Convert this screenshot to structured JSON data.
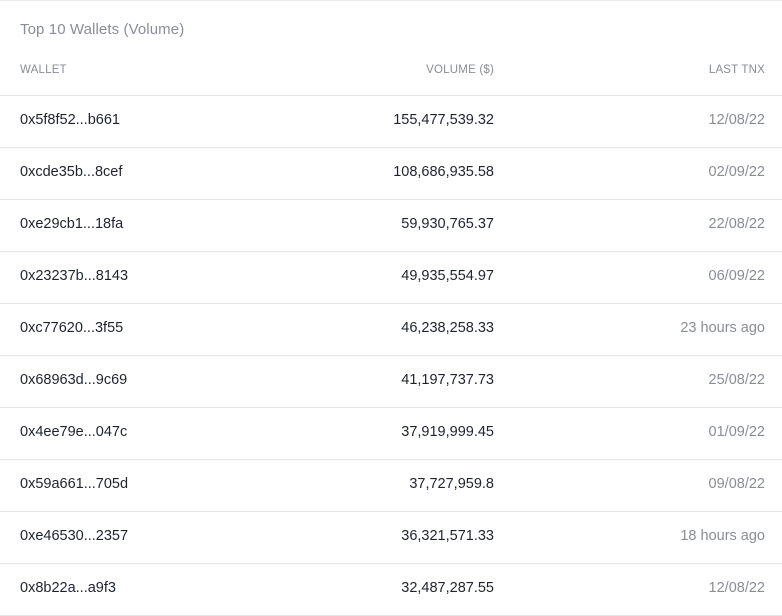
{
  "title": "Top 10 Wallets (Volume)",
  "columns": {
    "wallet": "WALLET",
    "volume": "VOLUME ($)",
    "last_tnx": "LAST TNX"
  },
  "rows": [
    {
      "wallet": "0x5f8f52...b661",
      "volume": "155,477,539.32",
      "last_tnx": "12/08/22"
    },
    {
      "wallet": "0xcde35b...8cef",
      "volume": "108,686,935.58",
      "last_tnx": "02/09/22"
    },
    {
      "wallet": "0xe29cb1...18fa",
      "volume": "59,930,765.37",
      "last_tnx": "22/08/22"
    },
    {
      "wallet": "0x23237b...8143",
      "volume": "49,935,554.97",
      "last_tnx": "06/09/22"
    },
    {
      "wallet": "0xc77620...3f55",
      "volume": "46,238,258.33",
      "last_tnx": "23 hours ago"
    },
    {
      "wallet": "0x68963d...9c69",
      "volume": "41,197,737.73",
      "last_tnx": "25/08/22"
    },
    {
      "wallet": "0x4ee79e...047c",
      "volume": "37,919,999.45",
      "last_tnx": "01/09/22"
    },
    {
      "wallet": "0x59a661...705d",
      "volume": "37,727,959.8",
      "last_tnx": "09/08/22"
    },
    {
      "wallet": "0xe46530...2357",
      "volume": "36,321,571.33",
      "last_tnx": "18 hours ago"
    },
    {
      "wallet": "0x8b22a...a9f3",
      "volume": "32,487,287.55",
      "last_tnx": "12/08/22"
    }
  ]
}
